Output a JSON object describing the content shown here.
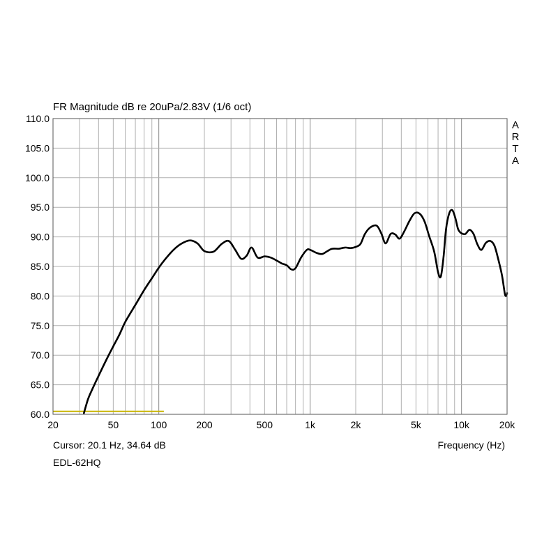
{
  "chart_data": {
    "type": "line",
    "title": "FR Magnitude dB re 20uPa/2.83V (1/6 oct)",
    "xlabel": "Frequency (Hz)",
    "ylabel": "",
    "xscale": "log",
    "xlim": [
      20,
      20000
    ],
    "ylim": [
      60,
      110
    ],
    "grid": true,
    "x_tick_labels": [
      "20",
      "50",
      "100",
      "200",
      "500",
      "1k",
      "2k",
      "5k",
      "10k",
      "20k"
    ],
    "x_tick_values": [
      20,
      50,
      100,
      200,
      500,
      1000,
      2000,
      5000,
      10000,
      20000
    ],
    "y_tick_labels": [
      "110.0",
      "105.0",
      "100.0",
      "95.0",
      "90.0",
      "85.0",
      "80.0",
      "75.0",
      "70.0",
      "65.0",
      "60.0"
    ],
    "y_tick_values": [
      110,
      105,
      100,
      95,
      90,
      85,
      80,
      75,
      70,
      65,
      60
    ],
    "series": [
      {
        "color": "#000000",
        "x": [
          32,
          34,
          36,
          40,
          45,
          50,
          55,
          60,
          70,
          80,
          90,
          100,
          110,
          125,
          140,
          160,
          180,
          200,
          230,
          260,
          290,
          320,
          350,
          380,
          410,
          450,
          500,
          550,
          600,
          650,
          700,
          750,
          800,
          870,
          950,
          1000,
          1100,
          1200,
          1300,
          1400,
          1550,
          1700,
          1850,
          2000,
          2150,
          2300,
          2500,
          2750,
          2950,
          3150,
          3400,
          3650,
          3900,
          4200,
          4550,
          4900,
          5300,
          5700,
          6100,
          6600,
          7000,
          7300,
          7600,
          7900,
          8300,
          8700,
          9100,
          9500,
          10000,
          10600,
          11300,
          12000,
          12700,
          13500,
          14500,
          15500,
          16500,
          17500,
          18500,
          19300,
          19700,
          20000
        ],
        "y": [
          60.2,
          62.5,
          64,
          66.5,
          69.2,
          71.5,
          73.5,
          75.6,
          78.5,
          81,
          83,
          84.8,
          86.2,
          87.8,
          88.8,
          89.4,
          88.9,
          87.6,
          87.5,
          88.8,
          89.3,
          87.8,
          86.3,
          86.8,
          88.2,
          86.5,
          86.7,
          86.5,
          86,
          85.5,
          85.2,
          84.5,
          84.7,
          86.5,
          87.8,
          87.8,
          87.3,
          87.1,
          87.6,
          88.0,
          88.0,
          88.2,
          88.1,
          88.3,
          88.8,
          90.5,
          91.6,
          91.9,
          90.6,
          88.9,
          90.5,
          90.4,
          89.7,
          91.0,
          92.8,
          94.0,
          93.9,
          92.6,
          90.2,
          87.5,
          84.0,
          83.3,
          86.5,
          91.3,
          94.0,
          94.5,
          93.2,
          91.3,
          90.6,
          90.5,
          91.2,
          90.5,
          88.8,
          87.8,
          89.0,
          89.3,
          88.5,
          86.2,
          83.5,
          80.5,
          80.0,
          80.5
        ]
      }
    ],
    "reference_line": {
      "x": [
        20,
        108
      ],
      "y": 60.5,
      "color": "#c8b400"
    }
  },
  "labels": {
    "cursor": "Cursor: 20.1 Hz, 34.64 dB",
    "device": "EDL-62HQ",
    "brand_letters": [
      "A",
      "R",
      "T",
      "A"
    ]
  }
}
